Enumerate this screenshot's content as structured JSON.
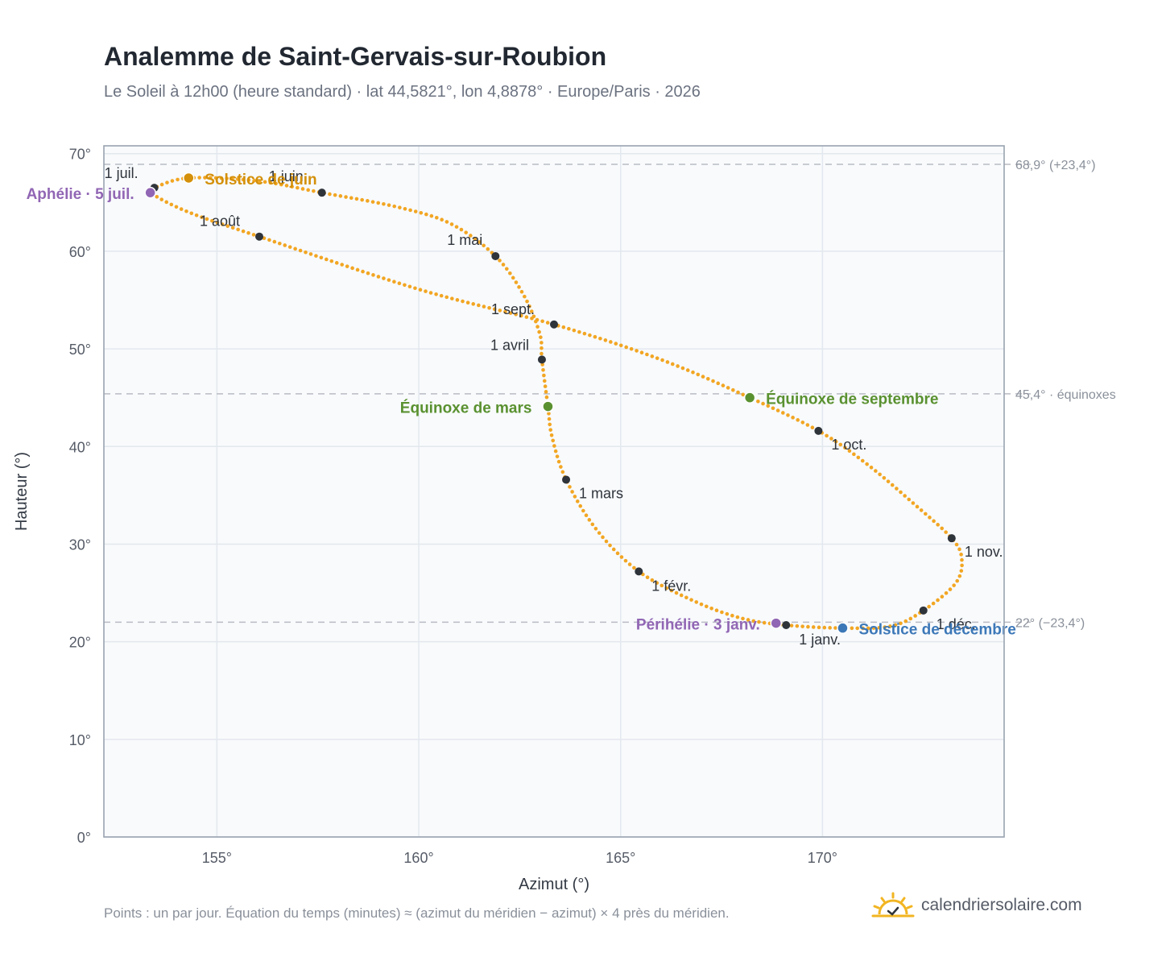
{
  "header": {
    "title": "Analemme de Saint-Gervais-sur-Roubion",
    "subtitle": "Le Soleil à 12h00 (heure standard) · lat 44,5821°, lon 4,8878° · Europe/Paris · 2026"
  },
  "footer": {
    "note": "Points : un par jour. Équation du temps (minutes) ≈ (azimut du méridien − azimut) × 4 près du méridien.",
    "brand": "calendriersolaire.com"
  },
  "colors": {
    "curve": "#f2a623",
    "month_marker": "#2f343b",
    "solstice_june": "#d4900a",
    "solstice_december": "#3c78b8",
    "equinox": "#5a9130",
    "apsis": "#9166b4",
    "reference_line": "#b8bcc4"
  },
  "chart_data": {
    "type": "scatter",
    "xlabel": "Azimut (°)",
    "ylabel": "Hauteur (°)",
    "xlim": [
      152.2,
      174.5
    ],
    "ylim": [
      0,
      70.8
    ],
    "x_ticks": [
      155,
      160,
      165,
      170
    ],
    "x_tick_labels": [
      "155°",
      "160°",
      "165°",
      "170°"
    ],
    "y_ticks": [
      0,
      10,
      20,
      30,
      40,
      50,
      60,
      70
    ],
    "y_tick_labels": [
      "0°",
      "10°",
      "20°",
      "30°",
      "40°",
      "50°",
      "60°",
      "70°"
    ],
    "grid": true,
    "reference_lines": [
      {
        "y": 68.9,
        "label": "68,9° (+23,4°)"
      },
      {
        "y": 45.4,
        "label": "45,4° · équinoxes"
      },
      {
        "y": 22.0,
        "label": "22° (−23,4°)"
      }
    ],
    "month_markers": [
      {
        "label": "1 janv.",
        "azimuth": 169.1,
        "altitude": 21.7
      },
      {
        "label": "1 févr.",
        "azimuth": 165.45,
        "altitude": 27.2
      },
      {
        "label": "1 mars",
        "azimuth": 163.65,
        "altitude": 36.6
      },
      {
        "label": "1 avril",
        "azimuth": 163.05,
        "altitude": 48.9
      },
      {
        "label": "1 mai",
        "azimuth": 161.9,
        "altitude": 59.5
      },
      {
        "label": "1 juin",
        "azimuth": 157.6,
        "altitude": 66.0
      },
      {
        "label": "1 juil.",
        "azimuth": 153.45,
        "altitude": 66.5
      },
      {
        "label": "1 août",
        "azimuth": 156.05,
        "altitude": 61.5
      },
      {
        "label": "1 sept.",
        "azimuth": 163.35,
        "altitude": 52.5
      },
      {
        "label": "1 oct.",
        "azimuth": 169.9,
        "altitude": 41.6
      },
      {
        "label": "1 nov.",
        "azimuth": 173.2,
        "altitude": 30.6
      },
      {
        "label": "1 déc.",
        "azimuth": 172.5,
        "altitude": 23.2
      }
    ],
    "events": [
      {
        "label": "Solstice de juin",
        "azimuth": 154.3,
        "altitude": 67.5,
        "kind": "solstice_june"
      },
      {
        "label": "Solstice de décembre",
        "azimuth": 170.5,
        "altitude": 21.4,
        "kind": "solstice_december"
      },
      {
        "label": "Équinoxe de mars",
        "azimuth": 163.2,
        "altitude": 44.1,
        "kind": "equinox"
      },
      {
        "label": "Équinoxe de septembre",
        "azimuth": 168.2,
        "altitude": 45.0,
        "kind": "equinox"
      },
      {
        "label": "Aphélie · 5 juil.",
        "azimuth": 153.35,
        "altitude": 66.0,
        "kind": "apsis"
      },
      {
        "label": "Périhélie · 3 janv.",
        "azimuth": 168.85,
        "altitude": 21.9,
        "kind": "apsis"
      }
    ],
    "series": [
      {
        "points": [
          [
            169.1,
            21.7
          ],
          [
            170.5,
            21.4
          ],
          [
            171.7,
            21.6
          ],
          [
            172.5,
            23.2
          ],
          [
            173.3,
            26.0
          ],
          [
            173.45,
            28.5
          ],
          [
            173.2,
            30.6
          ],
          [
            172.3,
            34.0
          ],
          [
            171.1,
            38.2
          ],
          [
            169.9,
            41.6
          ],
          [
            168.2,
            45.0
          ],
          [
            166.0,
            48.9
          ],
          [
            163.35,
            52.5
          ],
          [
            160.0,
            56.1
          ],
          [
            156.05,
            61.5
          ],
          [
            154.3,
            64.0
          ],
          [
            153.35,
            66.0
          ],
          [
            153.45,
            66.5
          ],
          [
            154.3,
            67.5
          ],
          [
            156.0,
            67.2
          ],
          [
            157.6,
            66.0
          ],
          [
            159.5,
            64.5
          ],
          [
            160.8,
            62.8
          ],
          [
            161.9,
            59.5
          ],
          [
            162.6,
            55.5
          ],
          [
            163.0,
            51.5
          ],
          [
            163.05,
            48.9
          ],
          [
            163.2,
            44.1
          ],
          [
            163.3,
            41.0
          ],
          [
            163.65,
            36.6
          ],
          [
            164.4,
            31.5
          ],
          [
            165.45,
            27.2
          ],
          [
            166.8,
            24.2
          ],
          [
            168.0,
            22.4
          ],
          [
            169.1,
            21.7
          ]
        ]
      }
    ]
  }
}
